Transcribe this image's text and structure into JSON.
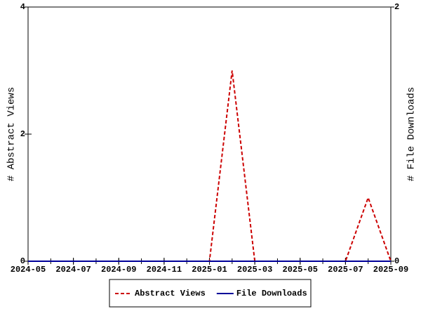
{
  "chart_data": {
    "type": "line",
    "x": [
      "2024-05",
      "2024-06",
      "2024-07",
      "2024-08",
      "2024-09",
      "2024-10",
      "2024-11",
      "2024-12",
      "2025-01",
      "2025-02",
      "2025-03",
      "2025-04",
      "2025-05",
      "2025-06",
      "2025-07",
      "2025-08",
      "2025-09"
    ],
    "xticks": [
      "2024-05",
      "2024-07",
      "2024-09",
      "2024-11",
      "2025-01",
      "2025-03",
      "2025-05",
      "2025-07",
      "2025-09"
    ],
    "ylabel": "# Abstract Views",
    "y2label": "# File Downloads",
    "ylim": [
      0,
      4
    ],
    "yticks": [
      0,
      2,
      4
    ],
    "y2lim": [
      0,
      2
    ],
    "y2ticks": [
      0,
      2
    ],
    "series": [
      {
        "name": "Abstract Views",
        "color": "#cc0000",
        "dash": true,
        "values": [
          0,
          0,
          0,
          0,
          0,
          0,
          0,
          0,
          0,
          3,
          0,
          0,
          0,
          0,
          0,
          1,
          0
        ]
      },
      {
        "name": "File Downloads",
        "color": "#000099",
        "dash": false,
        "axis": "y2",
        "values": [
          0,
          0,
          0,
          0,
          0,
          0,
          0,
          0,
          0,
          0,
          0,
          0,
          0,
          0,
          0,
          0,
          0
        ]
      }
    ],
    "legend": "bottom"
  }
}
